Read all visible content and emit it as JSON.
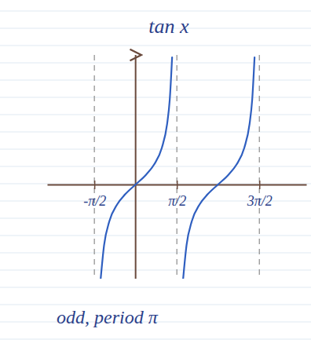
{
  "chart_data": {
    "type": "line",
    "title": "tan x",
    "annotations": [
      "odd, period π"
    ],
    "x": [
      -1.33,
      -1.2,
      -1.0,
      -0.7,
      -0.4,
      0,
      0.4,
      0.7,
      1.0,
      1.2,
      1.3,
      1.39,
      1.5708,
      1.81,
      1.94,
      2.14,
      2.44,
      2.74,
      3.14,
      3.54,
      3.84,
      4.14,
      4.34,
      4.44,
      4.53
    ],
    "values": [
      -4.0,
      -2.57,
      -1.56,
      -0.84,
      -0.42,
      0,
      0.42,
      0.84,
      1.56,
      2.57,
      3.6,
      5.4,
      null,
      -4.0,
      -2.57,
      -1.56,
      -0.84,
      -0.42,
      0,
      0.42,
      0.84,
      1.56,
      2.57,
      3.6,
      5.4
    ],
    "color": "#2f5fc0",
    "xlim": [
      -3.37,
      6.5
    ],
    "ylim": [
      -4,
      5.5
    ],
    "xticks": [
      {
        "value": -1.5708,
        "label": "-π/2"
      },
      {
        "value": 1.5708,
        "label": "π/2"
      },
      {
        "value": 4.7124,
        "label": "3π/2"
      }
    ],
    "grid": true,
    "tick_labels": "x"
  }
}
